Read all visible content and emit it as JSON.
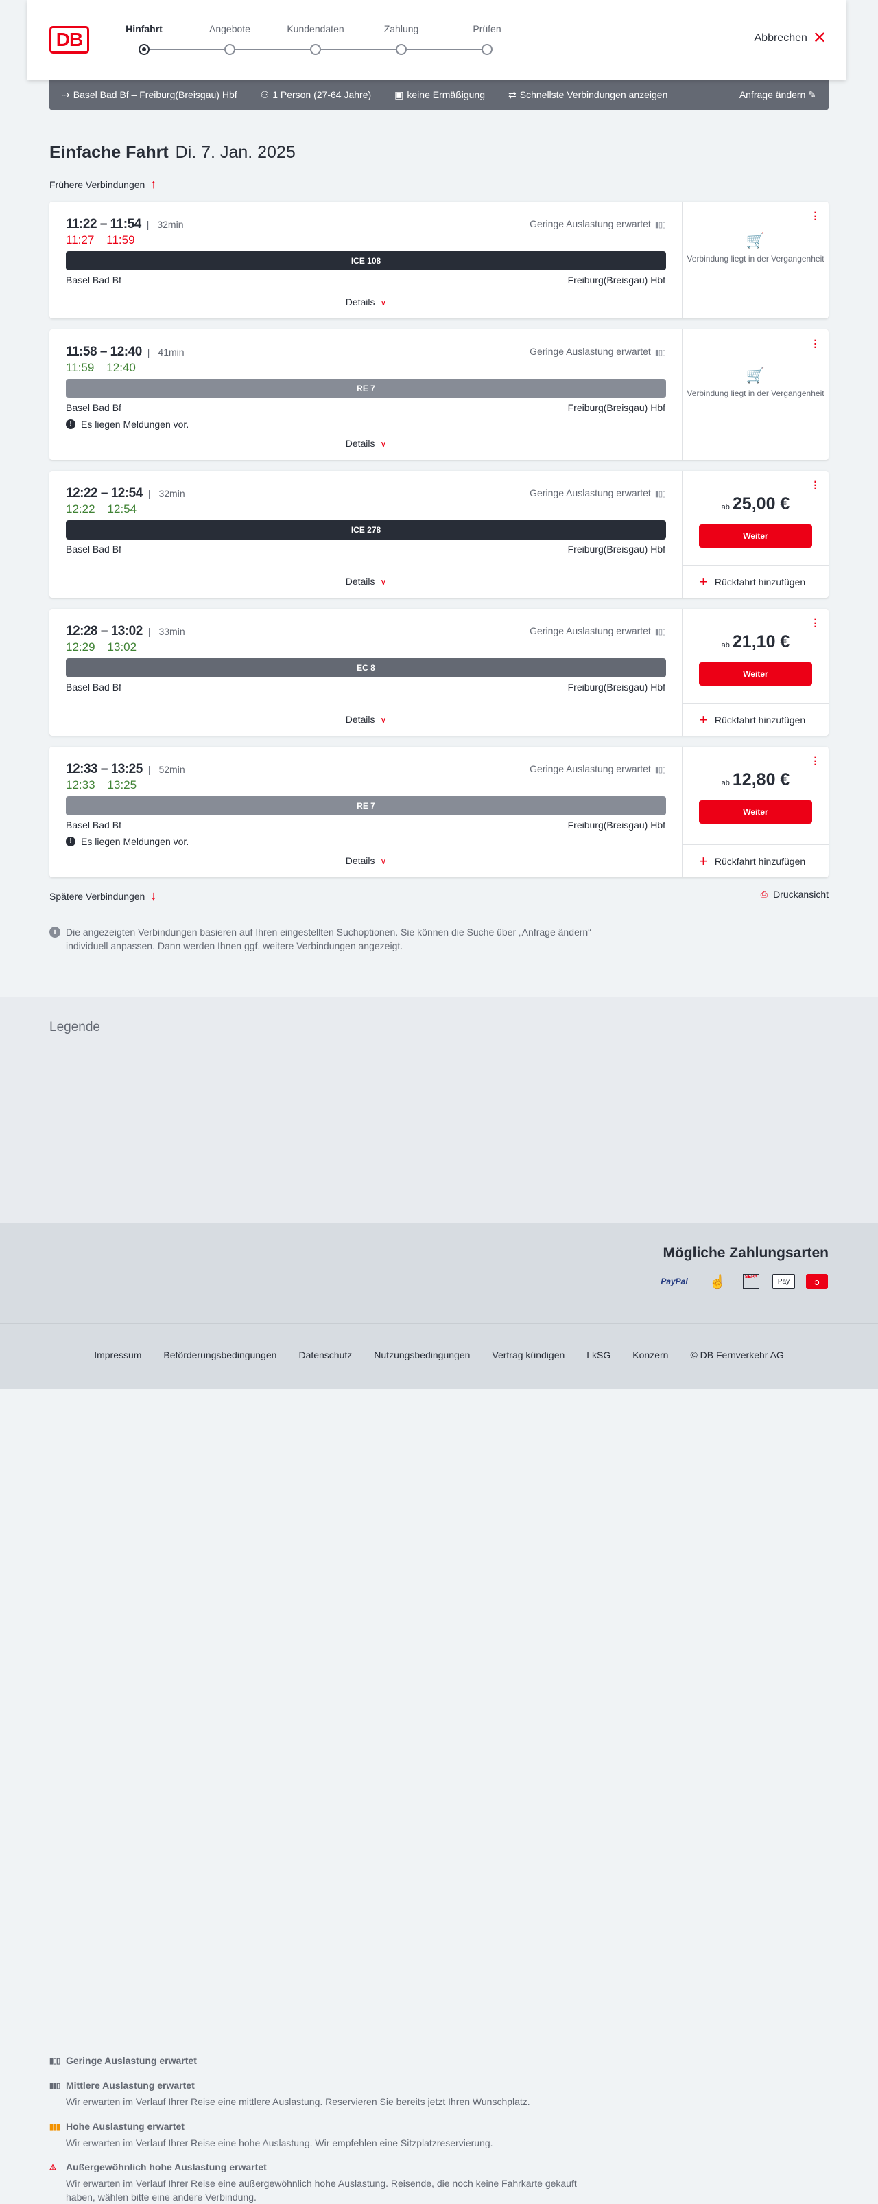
{
  "header": {
    "logo": "DB",
    "steps": [
      "Hinfahrt",
      "Angebote",
      "Kundendaten",
      "Zahlung",
      "Prüfen"
    ],
    "active_step": 0,
    "cancel": "Abbrechen"
  },
  "filter": {
    "route": "Basel Bad Bf – Freiburg(Breisgau) Hbf",
    "travellers": "1 Person (27-64 Jahre)",
    "discount": "keine Ermäßigung",
    "fastest": "Schnellste Verbindungen anzeigen",
    "edit": "Anfrage ändern"
  },
  "title": {
    "type": "Einfache Fahrt",
    "date": "Di. 7. Jan. 2025"
  },
  "earlier": "Frühere Verbindungen",
  "later": "Spätere Verbindungen",
  "print": "Druckansicht",
  "labels": {
    "details": "Details",
    "load": "Geringe Auslastung erwartet",
    "past": "Verbindung liegt in der Vergangenheit",
    "ab": "ab",
    "weiter": "Weiter",
    "return": "Rückfahrt hinzufügen",
    "from": "Basel Bad Bf",
    "to": "Freiburg(Breisgau) Hbf",
    "message": "Es liegen Meldungen vor."
  },
  "colors": {
    "accent": "#ec0016",
    "delay": "#ec0016",
    "ontime": "#408335",
    "ice": "#282d37",
    "ec": "#646973",
    "re": "#878c96"
  },
  "connections": [
    {
      "time": "11:22 – 11:54",
      "duration": "32min",
      "rt_dep": "11:27",
      "rt_arr": "11:59",
      "rt_status": "delay",
      "train": "ICE 108",
      "train_type": "ice",
      "message": false,
      "past": true
    },
    {
      "time": "11:58 – 12:40",
      "duration": "41min",
      "rt_dep": "11:59",
      "rt_arr": "12:40",
      "rt_status": "ontime",
      "train": "RE 7",
      "train_type": "re",
      "message": true,
      "past": true
    },
    {
      "time": "12:22 – 12:54",
      "duration": "32min",
      "rt_dep": "12:22",
      "rt_arr": "12:54",
      "rt_status": "ontime",
      "train": "ICE 278",
      "train_type": "ice",
      "message": false,
      "past": false,
      "price": "25,00 €"
    },
    {
      "time": "12:28 – 13:02",
      "duration": "33min",
      "rt_dep": "12:29",
      "rt_arr": "13:02",
      "rt_status": "ontime",
      "train": "EC 8",
      "train_type": "ec",
      "message": false,
      "past": false,
      "price": "21,10 €"
    },
    {
      "time": "12:33 – 13:25",
      "duration": "52min",
      "rt_dep": "12:33",
      "rt_arr": "13:25",
      "rt_status": "ontime",
      "train": "RE 7",
      "train_type": "re",
      "message": true,
      "past": false,
      "price": "12,80 €"
    }
  ],
  "info": "Die angezeigten Verbindungen basieren auf Ihren eingestellten Suchoptionen. Sie können die Suche über „Anfrage ändern“ individuell anpassen. Dann werden Ihnen ggf. weitere Verbindungen angezeigt.",
  "legend": {
    "title": "Legende",
    "items": [
      {
        "title": "Geringe Auslastung erwartet",
        "text": "",
        "color": "#646973"
      },
      {
        "title": "Mittlere Auslastung erwartet",
        "text": "Wir erwarten im Verlauf Ihrer Reise eine mittlere Auslastung. Reservieren Sie bereits jetzt Ihren Wunschplatz.",
        "color": "#646973"
      },
      {
        "title": "Hohe Auslastung erwartet",
        "text": "Wir erwarten im Verlauf Ihrer Reise eine hohe Auslastung. Wir empfehlen eine Sitzplatzreservierung.",
        "color": "#f39200"
      },
      {
        "title": "Außergewöhnlich hohe Auslastung erwartet",
        "text": "Wir erwarten im Verlauf Ihrer Reise eine außergewöhnlich hohe Auslastung. Reisende, die noch keine Fahrkarte gekauft haben, wählen bitte eine andere Verbindung.",
        "color": "#ec0016"
      }
    ]
  },
  "payment": {
    "title": "Mögliche Zahlungsarten",
    "methods": [
      "PayPal",
      "Kreditkarte",
      "SEPA",
      "Pay",
      "DB"
    ]
  },
  "footer": [
    "Impressum",
    "Beförderungsbedingungen",
    "Datenschutz",
    "Nutzungsbedingungen",
    "Vertrag kündigen",
    "LkSG",
    "Konzern",
    "© DB Fernverkehr AG"
  ]
}
